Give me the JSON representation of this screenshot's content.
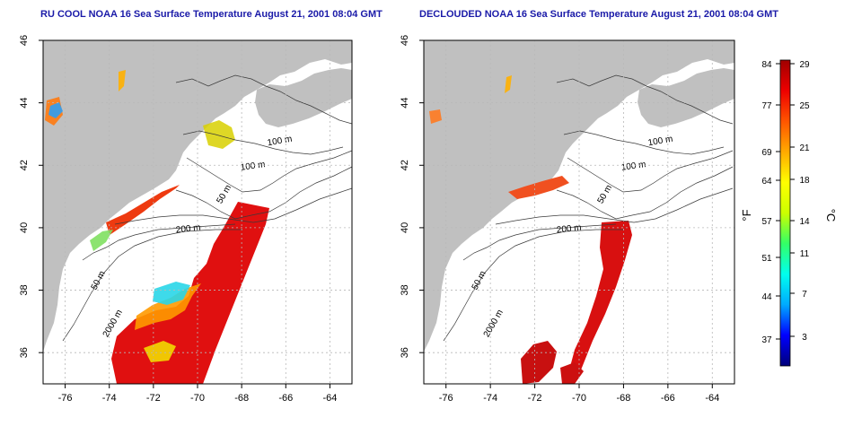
{
  "panels": [
    {
      "title": "RU COOL NOAA 16 Sea Surface Temperature August 21, 2001 08:04 GMT",
      "contour_labels": [
        "100 m",
        "100 m",
        "50 m",
        "200 m",
        "50 m",
        "2000 m"
      ]
    },
    {
      "title": "DECLOUDED NOAA 16 Sea Surface Temperature August 21, 2001 08:04 GMT",
      "contour_labels": [
        "100 m",
        "100 m",
        "50 m",
        "200 m",
        "50 m",
        "2000 m"
      ]
    }
  ],
  "axes": {
    "lon_ticks": [
      "-76",
      "-74",
      "-72",
      "-70",
      "-68",
      "-66",
      "-64"
    ],
    "lat_ticks": [
      "36",
      "38",
      "40",
      "42",
      "44",
      "46"
    ],
    "lon_range": [
      -77,
      -63
    ],
    "lat_range": [
      35,
      46
    ]
  },
  "colorbar": {
    "f_label": "°F",
    "c_label": "°C",
    "f_ticks": [
      "84",
      "77",
      "69",
      "64",
      "57",
      "51",
      "44",
      "37"
    ],
    "c_ticks": [
      "29",
      "25",
      "21",
      "18",
      "14",
      "11",
      "7",
      "3"
    ],
    "colors": [
      "#00007a",
      "#0000ff",
      "#00aaff",
      "#00ffee",
      "#33ff66",
      "#ccff00",
      "#ffff00",
      "#ffaa00",
      "#ff5500",
      "#ee0000",
      "#a00000"
    ]
  },
  "colors": {
    "land": "#c0c0c0",
    "ocean": "#ffffff",
    "title": "#1a1aa8",
    "grid": "#b8b8b8"
  }
}
